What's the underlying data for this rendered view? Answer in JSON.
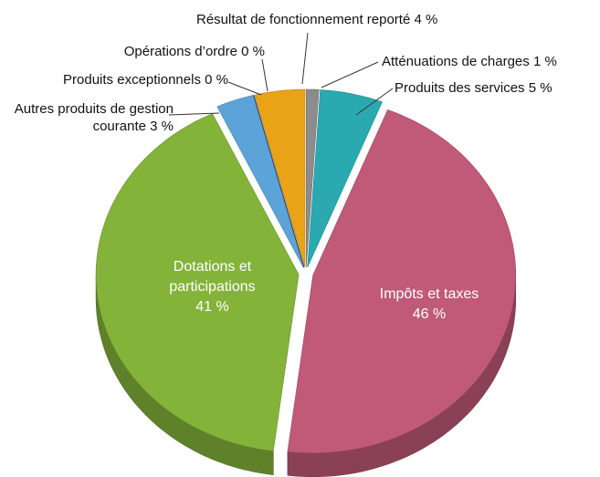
{
  "chart_data": {
    "type": "pie",
    "categories": [
      "Atténuations de charges",
      "Produits des services",
      "Impôts et taxes",
      "Dotations et participations",
      "Autres produits de gestion courante",
      "Produits exceptionnels",
      "Opérations d’ordre",
      "Résultat de fonctionnement reporté"
    ],
    "values": [
      1,
      5,
      46,
      41,
      3,
      0,
      0,
      4
    ],
    "value_labels": [
      "1 %",
      "5 %",
      "46 %",
      "41 %",
      "3 %",
      "0 %",
      "0 %",
      "4 %"
    ],
    "colors": [
      "#8c8c8c",
      "#2aa9b0",
      "#c05a78",
      "#84b33a",
      "#5ba3d9",
      "#1c2b5e",
      "#16163f",
      "#e8a317"
    ]
  }
}
